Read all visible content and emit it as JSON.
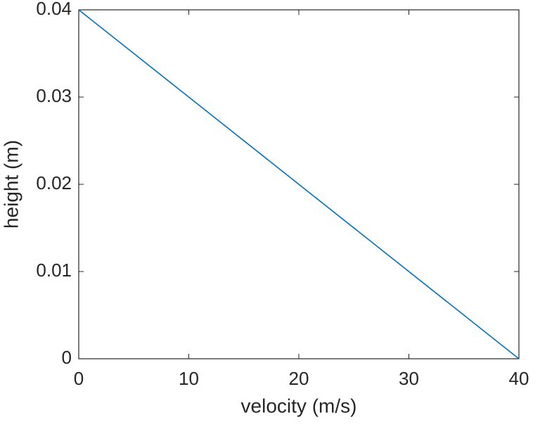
{
  "chart_data": {
    "type": "line",
    "x": [
      0,
      40
    ],
    "values": [
      0.04,
      0
    ],
    "color": "#0072bd",
    "xlabel": "velocity (m/s)",
    "ylabel": "height (m)",
    "xlim": [
      0,
      40
    ],
    "xticks": [
      0,
      10,
      20,
      30,
      40
    ],
    "ylim": [
      0,
      0.04
    ],
    "yticks": [
      0,
      0.01,
      0.02,
      0.03,
      0.04
    ],
    "box": true
  }
}
